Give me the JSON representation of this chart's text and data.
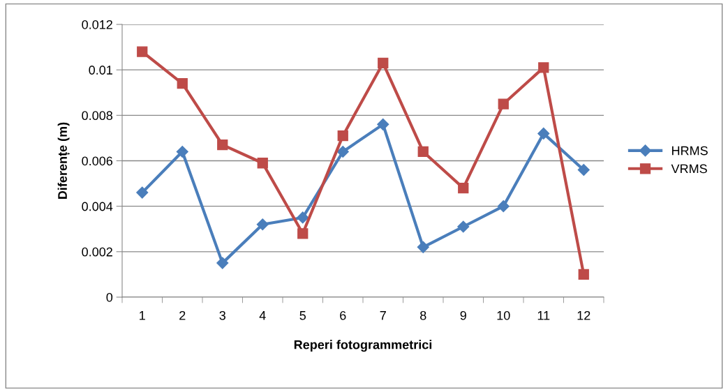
{
  "chart_data": {
    "type": "line",
    "xlabel": "Reperi fotogrammetrici",
    "ylabel": "Diferențe (m)",
    "categories": [
      "1",
      "2",
      "3",
      "4",
      "5",
      "6",
      "7",
      "8",
      "9",
      "10",
      "11",
      "12"
    ],
    "series": [
      {
        "name": "HRMS",
        "color": "#4a7ebb",
        "marker": "diamond",
        "values": [
          0.0046,
          0.0064,
          0.0015,
          0.0032,
          0.0035,
          0.0064,
          0.0076,
          0.0022,
          0.0031,
          0.004,
          0.0072,
          0.0056
        ]
      },
      {
        "name": "VRMS",
        "color": "#be4b48",
        "marker": "square",
        "values": [
          0.0108,
          0.0094,
          0.0067,
          0.0059,
          0.0028,
          0.0071,
          0.0103,
          0.0064,
          0.0048,
          0.0085,
          0.0101,
          0.001
        ]
      }
    ],
    "ylim": [
      0,
      0.012
    ],
    "yticks": [
      0,
      0.002,
      0.004,
      0.006,
      0.008,
      0.01,
      0.012
    ],
    "grid": "y",
    "legend": "right",
    "line_style": "solid"
  }
}
